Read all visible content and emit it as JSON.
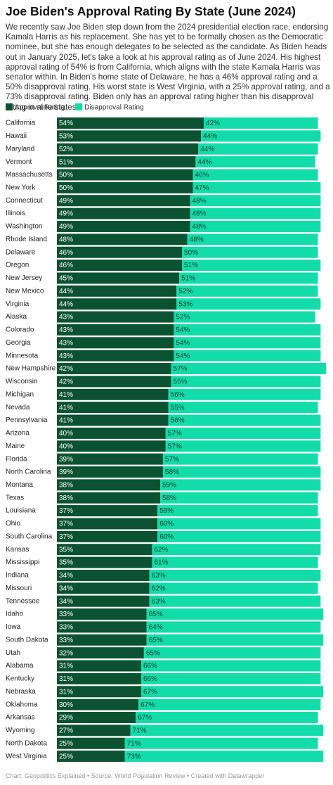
{
  "chart_data": {
    "type": "stacked-bar",
    "orientation": "horizontal",
    "title": "Joe Biden's Approval Rating By State (June 2024)",
    "subtitle": "We recently saw Joe Biden step down from the 2024 presidential election race, endorsing Kamala Harris as his replacement. She has yet to be formally chosen as the Democratic nominee, but she has enough delegates to be selected as the candidate. As Biden heads out in January 2025, let's take a look at his approval rating as of June 2024. His highest approval rating of 54% is from California, which aligns with the state Kamala Harris was senator within. In Biden's home state of Delaware, he has a 46% approval rating and a 50% disapproval rating. His worst state is West Virginia, with a 25% approval rating, and a 73% disapproval rating. Biden only has an approval rating higher than his disapproval rating in nine states.",
    "source": "Chart: Geopolitics Explained • Source: World Population Review • Created with Datawrapper",
    "xlim": [
      0,
      100
    ],
    "categories": [
      "California",
      "Hawaii",
      "Maryland",
      "Vermont",
      "Massachusetts",
      "New York",
      "Connecticut",
      "Illinois",
      "Washington",
      "Rhode Island",
      "Delaware",
      "Oregon",
      "New Jersey",
      "New Mexico",
      "Virginia",
      "Alaska",
      "Colorado",
      "Georgia",
      "Minnesota",
      "New Hampshire",
      "Wisconsin",
      "Michigan",
      "Nevada",
      "Pennsylvania",
      "Arizona",
      "Maine",
      "Florida",
      "North Carolina",
      "Montana",
      "Texas",
      "Louisiana",
      "Ohio",
      "South Carolina",
      "Kansas",
      "Mississippi",
      "Indiana",
      "Missouri",
      "Tennessee",
      "Idaho",
      "Iowa",
      "South Dakota",
      "Utah",
      "Alabama",
      "Kentucky",
      "Nebraska",
      "Oklahoma",
      "Arkansas",
      "Wyoming",
      "North Dakota",
      "West Virginia"
    ],
    "series": [
      {
        "name": "Approval Rating",
        "color": "#0b5230",
        "label_color": "#ffffff",
        "values": [
          54,
          53,
          52,
          51,
          50,
          50,
          49,
          49,
          49,
          48,
          46,
          46,
          45,
          44,
          44,
          43,
          43,
          43,
          43,
          42,
          42,
          41,
          41,
          41,
          40,
          40,
          39,
          39,
          38,
          38,
          37,
          37,
          37,
          35,
          35,
          34,
          34,
          34,
          33,
          33,
          33,
          32,
          31,
          31,
          31,
          30,
          29,
          27,
          25,
          25
        ],
        "value_labels": [
          "54%",
          "53%",
          "52%",
          "51%",
          "50%",
          "50%",
          "49%",
          "49%",
          "49%",
          "48%",
          "46%",
          "46%",
          "45%",
          "44%",
          "44%",
          "43%",
          "43%",
          "43%",
          "43%",
          "42%",
          "42%",
          "41%",
          "41%",
          "41%",
          "40%",
          "40%",
          "39%",
          "39%",
          "38%",
          "38%",
          "37%",
          "37%",
          "37%",
          "35%",
          "35%",
          "34%",
          "34%",
          "34%",
          "33%",
          "33%",
          "33%",
          "32%",
          "31%",
          "31%",
          "31%",
          "30%",
          "29%",
          "27%",
          "25%",
          "25%"
        ]
      },
      {
        "name": "Disapproval Rating",
        "color": "#12dcaa",
        "label_color": "#1a3a2c",
        "values": [
          42,
          44,
          44,
          44,
          46,
          47,
          48,
          48,
          48,
          48,
          50,
          51,
          51,
          52,
          53,
          52,
          54,
          54,
          54,
          57,
          55,
          56,
          55,
          56,
          57,
          57,
          57,
          58,
          59,
          58,
          59,
          60,
          60,
          62,
          61,
          63,
          62,
          63,
          65,
          64,
          65,
          65,
          66,
          66,
          67,
          67,
          67,
          71,
          71,
          73
        ],
        "value_labels": [
          "42%",
          "44%",
          "44%",
          "44%",
          "46%",
          "47%",
          "48%",
          "48%",
          "48%",
          "48%",
          "50%",
          "51%",
          "51%",
          "52%",
          "53%",
          "52%",
          "54%",
          "54%",
          "54%",
          "57%",
          "55%",
          "56%",
          "55%",
          "56%",
          "57%",
          "57%",
          "57%",
          "58%",
          "59%",
          "58%",
          "59%",
          "60%",
          "60%",
          "62%",
          "61%",
          "63%",
          "62%",
          "63%",
          "65%",
          "64%",
          "65%",
          "65%",
          "66%",
          "66%",
          "67%",
          "67%",
          "67%",
          "71%",
          "71%",
          "73%"
        ]
      }
    ]
  }
}
